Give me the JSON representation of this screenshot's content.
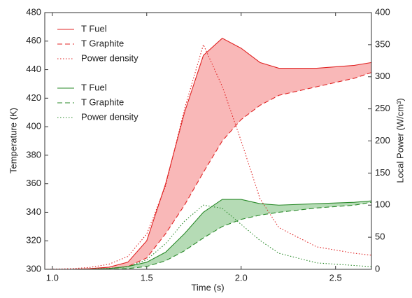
{
  "chart_data": {
    "type": "line",
    "x": [
      0.96,
      1.1,
      1.2,
      1.3,
      1.4,
      1.5,
      1.6,
      1.7,
      1.8,
      1.9,
      2.0,
      2.1,
      2.2,
      2.4,
      2.6,
      2.69
    ],
    "xlim": [
      0.96,
      2.69
    ],
    "xticks": [
      {
        "value": 1,
        "label": "1.0"
      },
      1.5,
      {
        "value": 2,
        "label": "2.0"
      },
      2.5
    ],
    "ylim": [
      300,
      480
    ],
    "yticks": [
      300,
      320,
      340,
      360,
      380,
      400,
      420,
      440,
      460,
      480
    ],
    "y2lim": [
      0,
      400
    ],
    "y2ticks": [
      0,
      50,
      100,
      150,
      200,
      250,
      300,
      350,
      400
    ],
    "xlabel": "Time (s)",
    "ylabel": "Temperature (K)",
    "y2label": "Local Power (W/cm³)",
    "grid": false,
    "legend": "upper-left",
    "shade_between": [
      [
        0,
        1,
        "#f9b8b8"
      ],
      [
        3,
        4,
        "#b5dbb5"
      ]
    ],
    "series": [
      {
        "name": "T Fuel",
        "color": "#e02424",
        "dash": "solid",
        "values": [
          300,
          300,
          300.5,
          301.5,
          305,
          320,
          360,
          410,
          450,
          462,
          455,
          445,
          441,
          441,
          443,
          445
        ]
      },
      {
        "name": "T Graphite",
        "color": "#e02424",
        "dash": "dashed",
        "values": [
          300,
          300,
          300,
          300.5,
          302,
          308,
          325,
          345,
          368,
          390,
          405,
          415,
          422,
          428,
          434,
          438
        ]
      },
      {
        "name": "Power density",
        "color": "#e02424",
        "dash": "dotted",
        "axis": "y2",
        "values": [
          0,
          1,
          3,
          8,
          20,
          55,
          130,
          250,
          350,
          285,
          200,
          110,
          65,
          35,
          25,
          22
        ]
      },
      {
        "name": "T Fuel",
        "color": "#2a8a2a",
        "dash": "solid",
        "values": [
          300,
          300,
          300,
          300.5,
          302,
          305,
          312,
          325,
          340,
          349,
          349,
          346,
          345,
          346,
          347,
          348
        ]
      },
      {
        "name": "T Graphite",
        "color": "#2a8a2a",
        "dash": "dashed",
        "values": [
          300,
          300,
          300,
          300,
          300.5,
          302,
          306,
          313,
          322,
          330,
          335,
          338,
          340,
          343,
          345,
          347
        ]
      },
      {
        "name": "Power density",
        "color": "#2a8a2a",
        "dash": "dotted",
        "axis": "y2",
        "values": [
          0,
          0,
          0.5,
          1.5,
          4,
          15,
          40,
          75,
          100,
          95,
          70,
          45,
          25,
          10,
          6,
          4
        ]
      }
    ]
  }
}
